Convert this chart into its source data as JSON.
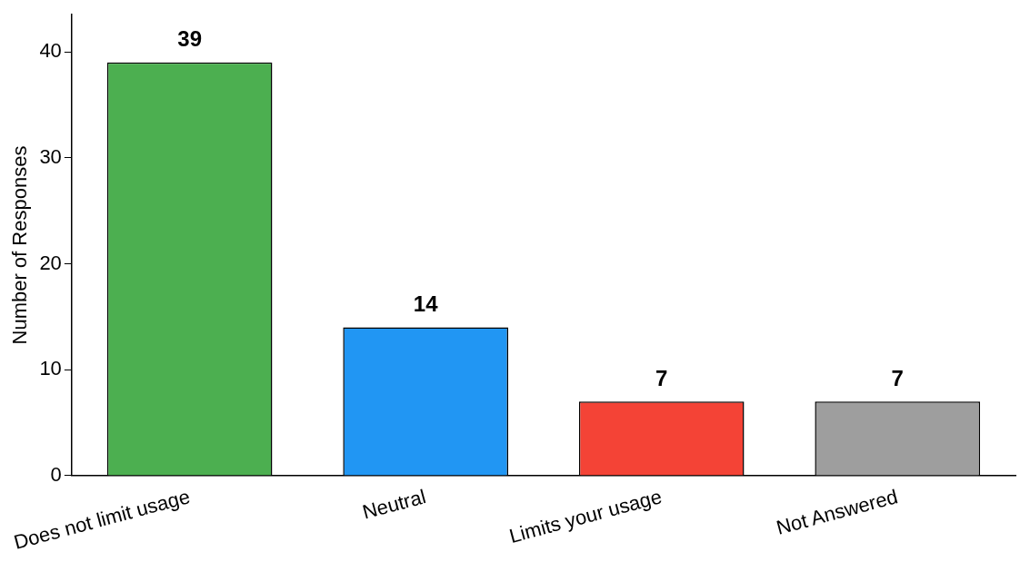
{
  "chart_data": {
    "type": "bar",
    "ylabel": "Number of Responses",
    "categories": [
      "Does not limit usage",
      "Neutral",
      "Limits your usage",
      "Not Answered"
    ],
    "values": [
      39,
      14,
      7,
      7
    ],
    "colors": [
      "#4caf50",
      "#2196f3",
      "#f44336",
      "#9e9e9e"
    ],
    "ylim": [
      0,
      43.5
    ],
    "yticks": [
      0,
      10,
      20,
      30,
      40
    ],
    "grid": false,
    "legend": false,
    "data_labels": true
  }
}
